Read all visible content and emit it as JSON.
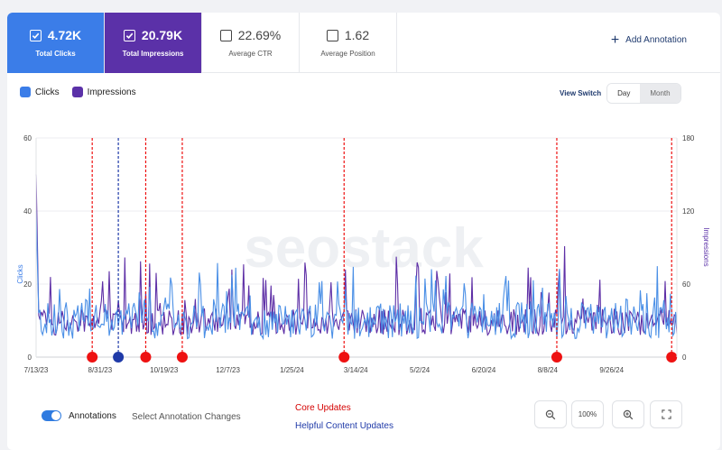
{
  "metrics": [
    {
      "value": "4.72K",
      "label": "Total Clicks",
      "checked": true,
      "color": "#3b7de8"
    },
    {
      "value": "20.79K",
      "label": "Total Impressions",
      "checked": true,
      "color": "#5b31a8"
    },
    {
      "value": "22.69%",
      "label": "Average CTR",
      "checked": false
    },
    {
      "value": "1.62",
      "label": "Average Position",
      "checked": false
    }
  ],
  "add_annotation_label": "Add Annotation",
  "legend": {
    "clicks": "Clicks",
    "impressions": "Impressions"
  },
  "view_switch": {
    "label": "View Switch",
    "day": "Day",
    "month": "Month",
    "selected": "Day"
  },
  "watermark": "seostack",
  "chart_data": {
    "type": "line",
    "x_ticks": [
      "7/13/23",
      "8/31/23",
      "10/19/23",
      "12/7/23",
      "1/25/24",
      "3/14/24",
      "5/2/24",
      "6/20/24",
      "8/8/24",
      "9/26/24"
    ],
    "x_range": [
      "7/13/23",
      "11/15/24"
    ],
    "ylabel": "Clicks",
    "ylabel_right": "Impressions",
    "y_ticks": [
      0,
      20,
      40,
      60
    ],
    "y_ticks_right": [
      0,
      60,
      120,
      180
    ],
    "ylim": [
      0,
      60
    ],
    "ylim_right": [
      0,
      180
    ],
    "colors": {
      "clicks": "#4a8fe6",
      "impressions": "#5e2fa6",
      "core": "#e11",
      "helpful": "#1f3aa8"
    },
    "annotations": [
      {
        "date": "8/25/23",
        "type": "core"
      },
      {
        "date": "9/14/23",
        "type": "helpful"
      },
      {
        "date": "10/5/23",
        "type": "core"
      },
      {
        "date": "11/2/23",
        "type": "core"
      },
      {
        "date": "3/5/24",
        "type": "core"
      },
      {
        "date": "8/15/24",
        "type": "core"
      },
      {
        "date": "11/11/24",
        "type": "core"
      }
    ],
    "series": [
      {
        "name": "Clicks"
      },
      {
        "name": "Impressions"
      }
    ]
  },
  "bottom": {
    "annotations_label": "Annotations",
    "select_changes": "Select Annotation Changes",
    "core_updates": "Core Updates",
    "helpful_updates": "Helpful Content Updates"
  },
  "controls": {
    "zoom_label": "100%"
  }
}
